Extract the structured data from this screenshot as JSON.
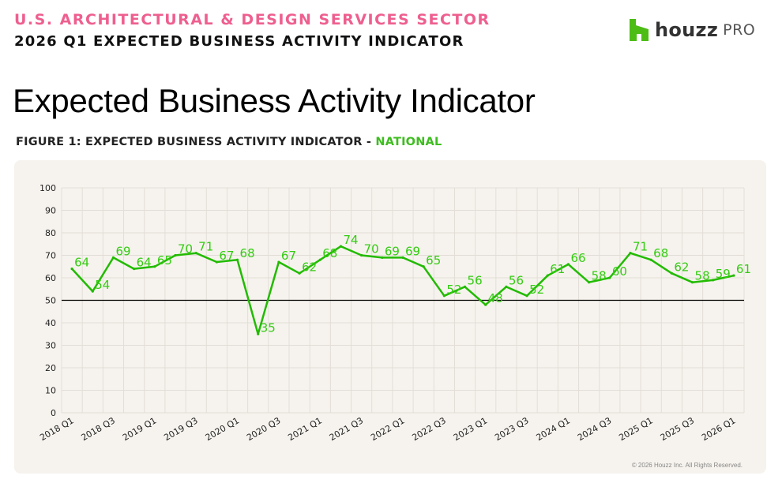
{
  "header": {
    "sector": "U.S. ARCHITECTURAL & DESIGN SERVICES SECTOR",
    "subtitle": "2026 Q1 EXPECTED BUSINESS ACTIVITY INDICATOR"
  },
  "brand": {
    "name": "houzz",
    "suffix": "PRO",
    "color": "#4dbc15"
  },
  "page_title": "Expected Business Activity Indicator",
  "figure": {
    "label": "FIGURE 1: EXPECTED BUSINESS ACTIVITY INDICATOR - ",
    "label_accent": "NATIONAL"
  },
  "copyright": "© 2026 Houzz Inc. All Rights Reserved.",
  "chart_data": {
    "type": "line",
    "title": "",
    "xlabel": "",
    "ylabel": "",
    "ylim": [
      0,
      100
    ],
    "y_ticks": [
      0,
      10,
      20,
      30,
      40,
      50,
      60,
      70,
      80,
      90,
      100
    ],
    "reference_line": 50,
    "grid": true,
    "line_color": "#22bb00",
    "label_color": "#33cc11",
    "x": [
      "2018 Q1",
      "2018 Q2",
      "2018 Q3",
      "2018 Q4",
      "2019 Q1",
      "2019 Q2",
      "2019 Q3",
      "2019 Q4",
      "2020 Q1",
      "2020 Q2",
      "2020 Q3",
      "2020 Q4",
      "2021 Q1",
      "2021 Q2",
      "2021 Q3",
      "2021 Q4",
      "2022 Q1",
      "2022 Q2",
      "2022 Q3",
      "2022 Q4",
      "2023 Q1",
      "2023 Q2",
      "2023 Q3",
      "2023 Q4",
      "2024 Q1",
      "2024 Q2",
      "2024 Q3",
      "2024 Q4",
      "2025 Q1",
      "2025 Q2",
      "2025 Q3",
      "2025 Q4",
      "2026 Q1"
    ],
    "x_tick_labels": [
      "2018 Q1",
      "",
      "2018 Q3",
      "",
      "2019 Q1",
      "",
      "2019 Q3",
      "",
      "2020 Q1",
      "",
      "2020 Q3",
      "",
      "2021 Q1",
      "",
      "2021 Q3",
      "",
      "2022 Q1",
      "",
      "2022 Q3",
      "",
      "2023 Q1",
      "",
      "2023 Q3",
      "",
      "2024 Q1",
      "",
      "2024 Q3",
      "",
      "2025 Q1",
      "",
      "2025 Q3",
      "",
      "2026 Q1"
    ],
    "series": [
      {
        "values": [
          64,
          54,
          69,
          64,
          65,
          70,
          71,
          67,
          68,
          35,
          67,
          62,
          68,
          74,
          70,
          69,
          69,
          65,
          52,
          56,
          48,
          56,
          52,
          61,
          66,
          58,
          60,
          71,
          68,
          62,
          58,
          59,
          61
        ]
      }
    ]
  }
}
